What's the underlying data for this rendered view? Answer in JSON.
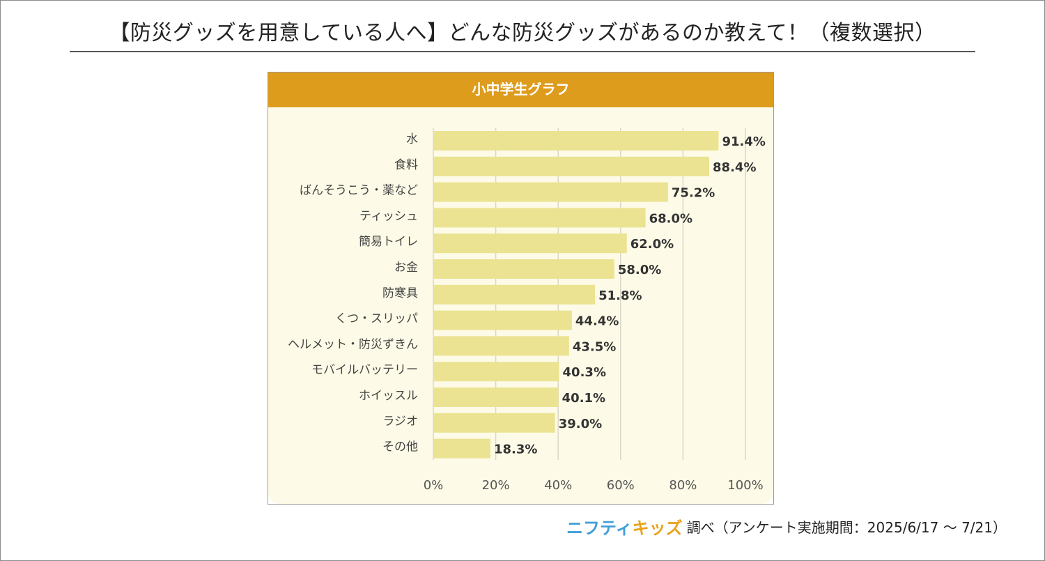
{
  "title": "【防災グッズを用意している人へ】どんな防災グッズがあるのか教えて！（複数選択）",
  "colors": {
    "header": "#de9c1c",
    "bar": "#ece392",
    "plot_background": "#fdfbe7",
    "grid": "#d9d6c8",
    "text": "#333333",
    "brand_blue": "#3f9fd6",
    "brand_orange": "#e8a21b"
  },
  "footer": {
    "brand_part1": "ニフティ",
    "brand_part2": "キッズ",
    "text": "調べ（アンケート実施期間：2025/6/17 ～ 7/21）"
  },
  "chart_data": {
    "type": "bar",
    "orientation": "horizontal",
    "title": "小中学生グラフ",
    "categories": [
      "水",
      "食料",
      "ばんそうこう・薬など",
      "ティッシュ",
      "簡易トイレ",
      "お金",
      "防寒具",
      "くつ・スリッパ",
      "ヘルメット・防災ずきん",
      "モバイルバッテリー",
      "ホイッスル",
      "ラジオ",
      "その他"
    ],
    "values": [
      91.4,
      88.4,
      75.2,
      68.0,
      62.0,
      58.0,
      51.8,
      44.4,
      43.5,
      40.3,
      40.1,
      39.0,
      18.3
    ],
    "value_labels": [
      "91.4%",
      "88.4%",
      "75.2%",
      "68.0%",
      "62.0%",
      "58.0%",
      "51.8%",
      "44.4%",
      "43.5%",
      "40.3%",
      "40.1%",
      "39.0%",
      "18.3%"
    ],
    "xlim": [
      0,
      100
    ],
    "xticks": [
      0,
      20,
      40,
      60,
      80,
      100
    ],
    "xtick_labels": [
      "0%",
      "20%",
      "40%",
      "60%",
      "80%",
      "100%"
    ],
    "grid": true,
    "legend": "none"
  }
}
